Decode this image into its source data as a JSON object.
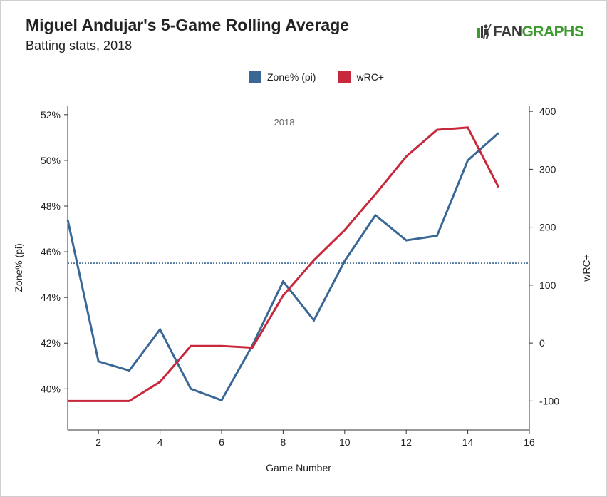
{
  "header": {
    "title": "Miguel Andujar's 5-Game Rolling Average",
    "subtitle": "Batting stats, 2018",
    "logo_fan": "FAN",
    "logo_graphs": "GRAPHS"
  },
  "chart_data": {
    "type": "line",
    "title": "Miguel Andujar's 5-Game Rolling Average",
    "subtitle": "Batting stats, 2018",
    "xlabel": "Game Number",
    "ylabel_left": "Zone% (pi)",
    "ylabel_right": "wRC+",
    "xlim": [
      1,
      16
    ],
    "ylim_left": [
      38.2,
      52.4
    ],
    "ylim_right": [
      -150,
      410
    ],
    "x_ticks": [
      2,
      4,
      6,
      8,
      10,
      12,
      14,
      16
    ],
    "y_left_ticks": [
      40,
      42,
      44,
      46,
      48,
      50,
      52
    ],
    "y_left_tick_labels": [
      "40%",
      "42%",
      "44%",
      "46%",
      "48%",
      "50%",
      "52%"
    ],
    "y_right_ticks": [
      -100,
      0,
      100,
      200,
      300,
      400
    ],
    "grid": false,
    "legend_placement": "top-center",
    "annotation": "2018",
    "reference_line": {
      "axis": "left",
      "value": 45.5,
      "color": "#3a6896",
      "style": "dotted"
    },
    "series": [
      {
        "name": "Zone% (pi)",
        "axis": "left",
        "color": "#3a6896",
        "x": [
          1,
          2,
          3,
          4,
          5,
          6,
          7,
          8,
          9,
          10,
          11,
          12,
          13,
          14,
          15
        ],
        "values": [
          47.4,
          41.2,
          40.8,
          42.6,
          40.0,
          39.5,
          41.9,
          44.7,
          43.0,
          45.6,
          47.6,
          46.5,
          46.7,
          50.0,
          51.2
        ]
      },
      {
        "name": "wRC+",
        "axis": "right",
        "color": "#c8283c",
        "x": [
          1,
          2,
          3,
          4,
          5,
          6,
          7,
          8,
          9,
          10,
          11,
          12,
          13,
          14,
          15
        ],
        "values": [
          -100,
          -100,
          -100,
          -67,
          -5,
          -5,
          -8,
          82,
          143,
          195,
          257,
          322,
          368,
          372,
          269
        ]
      }
    ]
  }
}
